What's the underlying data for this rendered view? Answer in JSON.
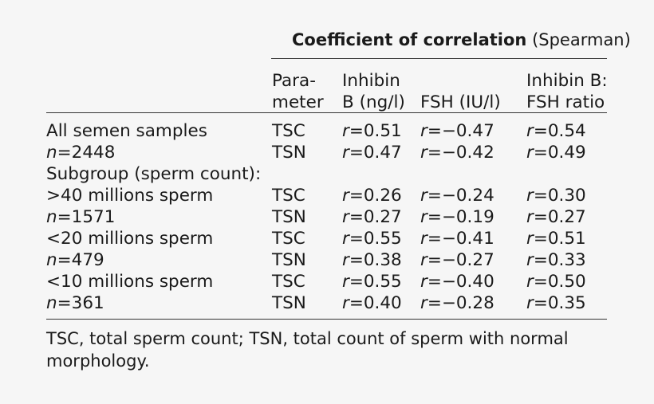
{
  "header": {
    "spanner_bold": "Coefficient of correlation",
    "spanner_rest": "(Spearman)",
    "col_param": [
      "Para-",
      "meter"
    ],
    "col_inhibin": [
      "Inhibin",
      "B (ng/l)"
    ],
    "col_fsh": "FSH (IU/l)",
    "col_ratio": [
      "Inhibin B:",
      "FSH ratio"
    ]
  },
  "rows": [
    {
      "label": "All semen samples",
      "param": "TSC",
      "inhibin": "r=0.51",
      "fsh": "r=−0.47",
      "ratio": "r=0.54"
    },
    {
      "label": "n=2448",
      "param": "TSN",
      "inhibin": "r=0.47",
      "fsh": "r=−0.42",
      "ratio": "r=0.49"
    },
    {
      "label": "Subgroup (sperm count):"
    },
    {
      "label": ">40 millions sperm",
      "param": "TSC",
      "inhibin": "r=0.26",
      "fsh": "r=−0.24",
      "ratio": "r=0.30"
    },
    {
      "label": "n=1571",
      "param": "TSN",
      "inhibin": "r=0.27",
      "fsh": "r=−0.19",
      "ratio": "r=0.27"
    },
    {
      "label": "<20 millions sperm",
      "param": "TSC",
      "inhibin": "r=0.55",
      "fsh": "r=−0.41",
      "ratio": "r=0.51"
    },
    {
      "label": "n=479",
      "param": "TSN",
      "inhibin": "r=0.38",
      "fsh": "r=−0.27",
      "ratio": "r=0.33"
    },
    {
      "label": "<10 millions sperm",
      "param": "TSC",
      "inhibin": "r=0.55",
      "fsh": "r=−0.40",
      "ratio": "r=0.50"
    },
    {
      "label": "n=361",
      "param": "TSN",
      "inhibin": "r=0.40",
      "fsh": "r=−0.28",
      "ratio": "r=0.35"
    }
  ],
  "footnote": [
    "TSC, total sperm count; TSN, total count of sperm with normal",
    "morphology."
  ]
}
